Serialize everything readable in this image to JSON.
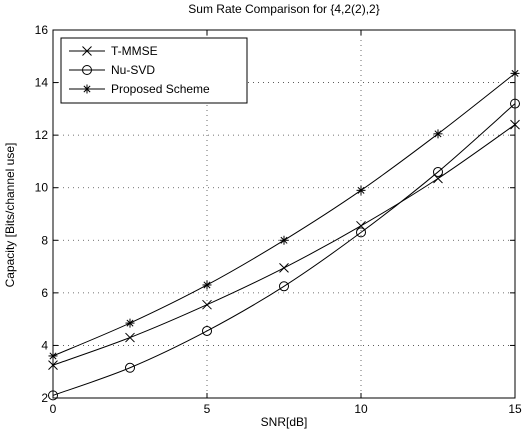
{
  "chart_data": {
    "type": "line",
    "title": "Sum Rate Comparison for {4,2(2),2}",
    "xlabel": "SNR[dB]",
    "ylabel": "Capacity [Bits/channel use]",
    "xlim": [
      0,
      15
    ],
    "ylim": [
      2,
      16
    ],
    "xticks": [
      0,
      5,
      10,
      15
    ],
    "yticks": [
      2,
      4,
      6,
      8,
      10,
      12,
      14,
      16
    ],
    "grid": true,
    "legend_position": "top-left",
    "x": [
      0,
      2.5,
      5,
      7.5,
      10,
      12.5,
      15
    ],
    "series": [
      {
        "name": "T-MMSE",
        "marker": "x",
        "values": [
          3.25,
          4.3,
          5.55,
          6.95,
          8.55,
          10.35,
          12.4
        ]
      },
      {
        "name": "Nu-SVD",
        "marker": "o",
        "values": [
          2.1,
          3.15,
          4.55,
          6.25,
          8.3,
          10.6,
          13.2
        ]
      },
      {
        "name": "Proposed Scheme",
        "marker": "*",
        "values": [
          3.6,
          4.85,
          6.3,
          8.0,
          9.9,
          12.05,
          14.35
        ]
      }
    ]
  }
}
